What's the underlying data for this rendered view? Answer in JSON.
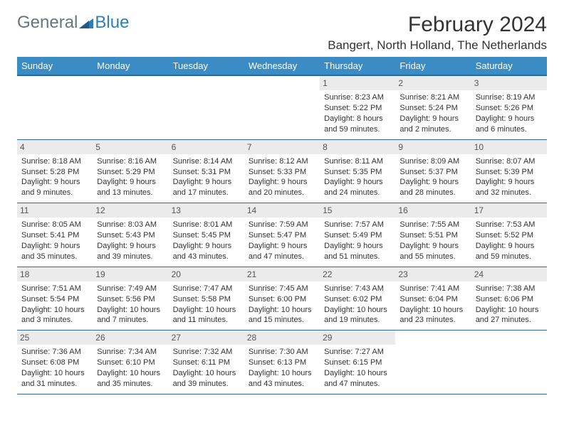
{
  "logo": {
    "text1": "General",
    "text2": "Blue"
  },
  "title": "February 2024",
  "location": "Bangert, North Holland, The Netherlands",
  "colors": {
    "header_bg": "#3b8bc4",
    "header_border": "#2c6a9c",
    "daynum_bg": "#ebebeb",
    "text": "#333333"
  },
  "weekdays": [
    "Sunday",
    "Monday",
    "Tuesday",
    "Wednesday",
    "Thursday",
    "Friday",
    "Saturday"
  ],
  "weeks": [
    [
      null,
      null,
      null,
      null,
      {
        "d": "1",
        "sr": "Sunrise: 8:23 AM",
        "ss": "Sunset: 5:22 PM",
        "dl": "Daylight: 8 hours and 59 minutes."
      },
      {
        "d": "2",
        "sr": "Sunrise: 8:21 AM",
        "ss": "Sunset: 5:24 PM",
        "dl": "Daylight: 9 hours and 2 minutes."
      },
      {
        "d": "3",
        "sr": "Sunrise: 8:19 AM",
        "ss": "Sunset: 5:26 PM",
        "dl": "Daylight: 9 hours and 6 minutes."
      }
    ],
    [
      {
        "d": "4",
        "sr": "Sunrise: 8:18 AM",
        "ss": "Sunset: 5:28 PM",
        "dl": "Daylight: 9 hours and 9 minutes."
      },
      {
        "d": "5",
        "sr": "Sunrise: 8:16 AM",
        "ss": "Sunset: 5:29 PM",
        "dl": "Daylight: 9 hours and 13 minutes."
      },
      {
        "d": "6",
        "sr": "Sunrise: 8:14 AM",
        "ss": "Sunset: 5:31 PM",
        "dl": "Daylight: 9 hours and 17 minutes."
      },
      {
        "d": "7",
        "sr": "Sunrise: 8:12 AM",
        "ss": "Sunset: 5:33 PM",
        "dl": "Daylight: 9 hours and 20 minutes."
      },
      {
        "d": "8",
        "sr": "Sunrise: 8:11 AM",
        "ss": "Sunset: 5:35 PM",
        "dl": "Daylight: 9 hours and 24 minutes."
      },
      {
        "d": "9",
        "sr": "Sunrise: 8:09 AM",
        "ss": "Sunset: 5:37 PM",
        "dl": "Daylight: 9 hours and 28 minutes."
      },
      {
        "d": "10",
        "sr": "Sunrise: 8:07 AM",
        "ss": "Sunset: 5:39 PM",
        "dl": "Daylight: 9 hours and 32 minutes."
      }
    ],
    [
      {
        "d": "11",
        "sr": "Sunrise: 8:05 AM",
        "ss": "Sunset: 5:41 PM",
        "dl": "Daylight: 9 hours and 35 minutes."
      },
      {
        "d": "12",
        "sr": "Sunrise: 8:03 AM",
        "ss": "Sunset: 5:43 PM",
        "dl": "Daylight: 9 hours and 39 minutes."
      },
      {
        "d": "13",
        "sr": "Sunrise: 8:01 AM",
        "ss": "Sunset: 5:45 PM",
        "dl": "Daylight: 9 hours and 43 minutes."
      },
      {
        "d": "14",
        "sr": "Sunrise: 7:59 AM",
        "ss": "Sunset: 5:47 PM",
        "dl": "Daylight: 9 hours and 47 minutes."
      },
      {
        "d": "15",
        "sr": "Sunrise: 7:57 AM",
        "ss": "Sunset: 5:49 PM",
        "dl": "Daylight: 9 hours and 51 minutes."
      },
      {
        "d": "16",
        "sr": "Sunrise: 7:55 AM",
        "ss": "Sunset: 5:51 PM",
        "dl": "Daylight: 9 hours and 55 minutes."
      },
      {
        "d": "17",
        "sr": "Sunrise: 7:53 AM",
        "ss": "Sunset: 5:52 PM",
        "dl": "Daylight: 9 hours and 59 minutes."
      }
    ],
    [
      {
        "d": "18",
        "sr": "Sunrise: 7:51 AM",
        "ss": "Sunset: 5:54 PM",
        "dl": "Daylight: 10 hours and 3 minutes."
      },
      {
        "d": "19",
        "sr": "Sunrise: 7:49 AM",
        "ss": "Sunset: 5:56 PM",
        "dl": "Daylight: 10 hours and 7 minutes."
      },
      {
        "d": "20",
        "sr": "Sunrise: 7:47 AM",
        "ss": "Sunset: 5:58 PM",
        "dl": "Daylight: 10 hours and 11 minutes."
      },
      {
        "d": "21",
        "sr": "Sunrise: 7:45 AM",
        "ss": "Sunset: 6:00 PM",
        "dl": "Daylight: 10 hours and 15 minutes."
      },
      {
        "d": "22",
        "sr": "Sunrise: 7:43 AM",
        "ss": "Sunset: 6:02 PM",
        "dl": "Daylight: 10 hours and 19 minutes."
      },
      {
        "d": "23",
        "sr": "Sunrise: 7:41 AM",
        "ss": "Sunset: 6:04 PM",
        "dl": "Daylight: 10 hours and 23 minutes."
      },
      {
        "d": "24",
        "sr": "Sunrise: 7:38 AM",
        "ss": "Sunset: 6:06 PM",
        "dl": "Daylight: 10 hours and 27 minutes."
      }
    ],
    [
      {
        "d": "25",
        "sr": "Sunrise: 7:36 AM",
        "ss": "Sunset: 6:08 PM",
        "dl": "Daylight: 10 hours and 31 minutes."
      },
      {
        "d": "26",
        "sr": "Sunrise: 7:34 AM",
        "ss": "Sunset: 6:10 PM",
        "dl": "Daylight: 10 hours and 35 minutes."
      },
      {
        "d": "27",
        "sr": "Sunrise: 7:32 AM",
        "ss": "Sunset: 6:11 PM",
        "dl": "Daylight: 10 hours and 39 minutes."
      },
      {
        "d": "28",
        "sr": "Sunrise: 7:30 AM",
        "ss": "Sunset: 6:13 PM",
        "dl": "Daylight: 10 hours and 43 minutes."
      },
      {
        "d": "29",
        "sr": "Sunrise: 7:27 AM",
        "ss": "Sunset: 6:15 PM",
        "dl": "Daylight: 10 hours and 47 minutes."
      },
      null,
      null
    ]
  ]
}
